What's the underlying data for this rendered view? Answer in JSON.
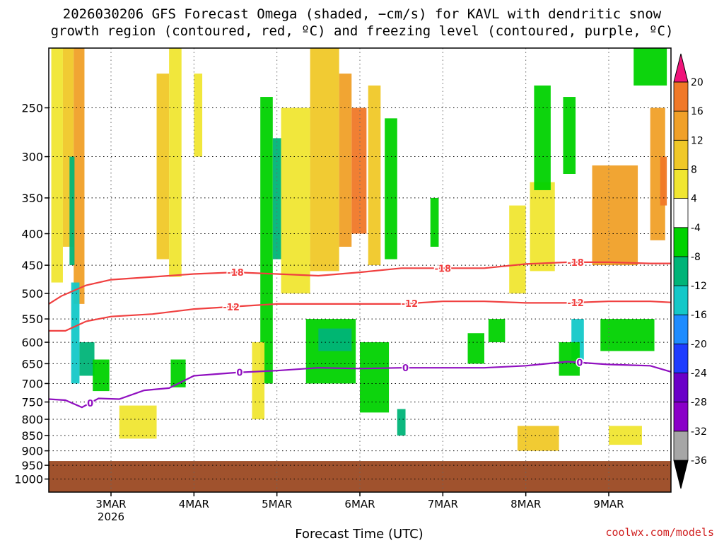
{
  "title_lines": [
    "2026030206 GFS Forecast Omega (shaded, −cm/s) for KAVL with dendritic snow",
    "growth region (contoured, red, ºC) and freezing level (contoured, purple, ºC)"
  ],
  "credit": "coolwx.com/models",
  "chart_data": {
    "type": "heatmap",
    "xlabel": "Forecast Time (UTC)",
    "ylabel": "",
    "x_ticks": [
      {
        "label": "3MAR",
        "sub": "2026",
        "day": 3
      },
      {
        "label": "4MAR",
        "day": 4
      },
      {
        "label": "5MAR",
        "day": 5
      },
      {
        "label": "6MAR",
        "day": 6
      },
      {
        "label": "7MAR",
        "day": 7
      },
      {
        "label": "8MAR",
        "day": 8
      },
      {
        "label": "9MAR",
        "day": 9
      }
    ],
    "xlim_day": [
      2.25,
      9.75
    ],
    "y_ticks": [
      250,
      300,
      350,
      400,
      450,
      500,
      550,
      600,
      650,
      700,
      750,
      800,
      850,
      900,
      950,
      1000
    ],
    "ylim_hpa": [
      200,
      1050
    ],
    "y_scale": "log-pressure",
    "grid": true,
    "ground_pressure_hpa": 935,
    "ground_color": "#a0522d",
    "colorbar": {
      "levels": [
        -36,
        -32,
        -28,
        -24,
        -20,
        -16,
        -12,
        -8,
        -4,
        4,
        8,
        12,
        16,
        20
      ],
      "colors": [
        "#000000",
        "#a6a6a6",
        "#8a00c8",
        "#6a00c8",
        "#1e3cff",
        "#1e8cff",
        "#14c8c8",
        "#00b478",
        "#00d200",
        "#ffffff",
        "#f0e632",
        "#f0c828",
        "#f0a028",
        "#f07828",
        "#f03c3c",
        "#f0147a"
      ]
    },
    "cells": [
      {
        "d": [
          2.28,
          2.42
        ],
        "p": [
          200,
          480
        ],
        "v": 6
      },
      {
        "d": [
          2.42,
          2.55
        ],
        "p": [
          200,
          420
        ],
        "v": 10
      },
      {
        "d": [
          2.55,
          2.68
        ],
        "p": [
          200,
          520
        ],
        "v": 12
      },
      {
        "d": [
          2.5,
          2.56
        ],
        "p": [
          300,
          450
        ],
        "v": -12
      },
      {
        "d": [
          2.52,
          2.62
        ],
        "p": [
          480,
          700
        ],
        "v": -14
      },
      {
        "d": [
          2.62,
          2.8
        ],
        "p": [
          600,
          680
        ],
        "v": -12
      },
      {
        "d": [
          2.78,
          2.98
        ],
        "p": [
          640,
          720
        ],
        "v": -8
      },
      {
        "d": [
          3.1,
          3.55
        ],
        "p": [
          760,
          860
        ],
        "v": 6
      },
      {
        "d": [
          3.55,
          3.7
        ],
        "p": [
          220,
          440
        ],
        "v": 10
      },
      {
        "d": [
          3.7,
          3.85
        ],
        "p": [
          200,
          470
        ],
        "v": 6
      },
      {
        "d": [
          3.72,
          3.9
        ],
        "p": [
          640,
          710
        ],
        "v": -8
      },
      {
        "d": [
          4.0,
          4.1
        ],
        "p": [
          220,
          300
        ],
        "v": 6
      },
      {
        "d": [
          4.8,
          4.95
        ],
        "p": [
          240,
          700
        ],
        "v": -8
      },
      {
        "d": [
          4.95,
          5.05
        ],
        "p": [
          280,
          440
        ],
        "v": -12
      },
      {
        "d": [
          4.7,
          4.85
        ],
        "p": [
          600,
          800
        ],
        "v": 6
      },
      {
        "d": [
          5.05,
          5.4
        ],
        "p": [
          250,
          500
        ],
        "v": 6
      },
      {
        "d": [
          5.4,
          5.75
        ],
        "p": [
          200,
          460
        ],
        "v": 8
      },
      {
        "d": [
          5.75,
          5.9
        ],
        "p": [
          220,
          420
        ],
        "v": 12
      },
      {
        "d": [
          5.9,
          6.08
        ],
        "p": [
          250,
          400
        ],
        "v": 18
      },
      {
        "d": [
          6.1,
          6.25
        ],
        "p": [
          230,
          450
        ],
        "v": 8
      },
      {
        "d": [
          6.3,
          6.45
        ],
        "p": [
          260,
          440
        ],
        "v": -8
      },
      {
        "d": [
          5.35,
          5.95
        ],
        "p": [
          550,
          700
        ],
        "v": -8
      },
      {
        "d": [
          5.5,
          5.9
        ],
        "p": [
          570,
          620
        ],
        "v": -12
      },
      {
        "d": [
          6.0,
          6.35
        ],
        "p": [
          600,
          780
        ],
        "v": -8
      },
      {
        "d": [
          6.45,
          6.55
        ],
        "p": [
          770,
          850
        ],
        "v": -12
      },
      {
        "d": [
          6.85,
          6.95
        ],
        "p": [
          350,
          420
        ],
        "v": -8
      },
      {
        "d": [
          7.3,
          7.5
        ],
        "p": [
          580,
          650
        ],
        "v": -8
      },
      {
        "d": [
          7.55,
          7.75
        ],
        "p": [
          550,
          600
        ],
        "v": -8
      },
      {
        "d": [
          7.8,
          8.0
        ],
        "p": [
          360,
          500
        ],
        "v": 6
      },
      {
        "d": [
          8.05,
          8.35
        ],
        "p": [
          330,
          460
        ],
        "v": 6
      },
      {
        "d": [
          7.9,
          8.4
        ],
        "p": [
          820,
          900
        ],
        "v": 8
      },
      {
        "d": [
          8.1,
          8.3
        ],
        "p": [
          230,
          340
        ],
        "v": -8
      },
      {
        "d": [
          8.45,
          8.6
        ],
        "p": [
          240,
          320
        ],
        "v": -8
      },
      {
        "d": [
          8.55,
          8.7
        ],
        "p": [
          550,
          640
        ],
        "v": -14
      },
      {
        "d": [
          8.4,
          8.65
        ],
        "p": [
          600,
          680
        ],
        "v": -8
      },
      {
        "d": [
          8.8,
          9.35
        ],
        "p": [
          310,
          450
        ],
        "v": 12
      },
      {
        "d": [
          8.9,
          9.55
        ],
        "p": [
          550,
          620
        ],
        "v": -8
      },
      {
        "d": [
          9.5,
          9.68
        ],
        "p": [
          250,
          410
        ],
        "v": 12
      },
      {
        "d": [
          9.62,
          9.7
        ],
        "p": [
          300,
          360
        ],
        "v": 18
      },
      {
        "d": [
          9.0,
          9.4
        ],
        "p": [
          820,
          880
        ],
        "v": 6
      },
      {
        "d": [
          9.3,
          9.7
        ],
        "p": [
          200,
          230
        ],
        "v": -8
      }
    ],
    "contours": [
      {
        "name": "-18",
        "color": "#f04040",
        "label": "-18",
        "points": [
          [
            2.25,
            520
          ],
          [
            2.4,
            505
          ],
          [
            2.7,
            485
          ],
          [
            3.0,
            475
          ],
          [
            3.5,
            470
          ],
          [
            4.0,
            465
          ],
          [
            4.5,
            462
          ],
          [
            5.0,
            465
          ],
          [
            5.5,
            468
          ],
          [
            6.0,
            462
          ],
          [
            6.5,
            455
          ],
          [
            7.0,
            455
          ],
          [
            7.5,
            455
          ],
          [
            8.0,
            448
          ],
          [
            8.5,
            445
          ],
          [
            9.0,
            445
          ],
          [
            9.5,
            447
          ],
          [
            9.75,
            447
          ]
        ],
        "label_days": [
          4.5,
          7.0,
          8.6
        ]
      },
      {
        "name": "-12",
        "color": "#f04040",
        "label": "-12",
        "points": [
          [
            2.25,
            575
          ],
          [
            2.45,
            575
          ],
          [
            2.7,
            555
          ],
          [
            3.0,
            545
          ],
          [
            3.5,
            540
          ],
          [
            4.0,
            530
          ],
          [
            4.5,
            525
          ],
          [
            5.0,
            520
          ],
          [
            5.5,
            520
          ],
          [
            6.0,
            520
          ],
          [
            6.5,
            520
          ],
          [
            7.0,
            515
          ],
          [
            7.5,
            515
          ],
          [
            8.0,
            518
          ],
          [
            8.5,
            518
          ],
          [
            9.0,
            515
          ],
          [
            9.5,
            515
          ],
          [
            9.75,
            517
          ]
        ],
        "label_days": [
          4.45,
          6.6,
          8.6
        ]
      },
      {
        "name": "0",
        "color": "#9010c0",
        "label": "0",
        "points": [
          [
            2.25,
            742
          ],
          [
            2.45,
            745
          ],
          [
            2.65,
            765
          ],
          [
            2.85,
            740
          ],
          [
            3.1,
            742
          ],
          [
            3.4,
            718
          ],
          [
            3.7,
            712
          ],
          [
            4.0,
            680
          ],
          [
            4.5,
            672
          ],
          [
            5.0,
            667
          ],
          [
            5.5,
            660
          ],
          [
            6.0,
            662
          ],
          [
            6.5,
            660
          ],
          [
            7.0,
            660
          ],
          [
            7.5,
            660
          ],
          [
            8.0,
            655
          ],
          [
            8.5,
            645
          ],
          [
            9.0,
            652
          ],
          [
            9.5,
            655
          ],
          [
            9.75,
            670
          ]
        ],
        "label_days": [
          2.75,
          4.55,
          6.55,
          8.65
        ]
      }
    ]
  }
}
